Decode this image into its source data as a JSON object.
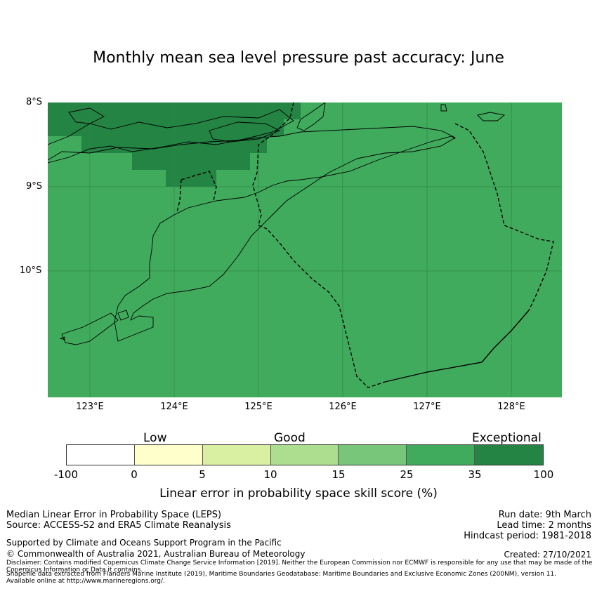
{
  "title": "Monthly mean sea level pressure past accuracy: June",
  "map": {
    "lat_labels": [
      "8°S",
      "9°S",
      "10°S"
    ],
    "lon_labels": [
      "123°E",
      "124°E",
      "125°E",
      "126°E",
      "127°E",
      "128°E"
    ],
    "base_color": "#41ab5d",
    "exceptional_color": "#238443"
  },
  "colorbar": {
    "categories": [
      "Low",
      "Good",
      "Exceptional"
    ],
    "ticks": [
      "-100",
      "0",
      "5",
      "10",
      "15",
      "25",
      "35",
      "100"
    ],
    "colors": [
      "#ffffff",
      "#ffffcc",
      "#d9f0a3",
      "#addd8e",
      "#78c679",
      "#41ab5d",
      "#238443"
    ],
    "label": "Linear error in probability space skill score (%)"
  },
  "footer": {
    "method": "Median Linear Error in Probability Space (LEPS)",
    "source": "Source: ACCESS-S2 and ERA5 Climate Reanalysis",
    "run_date": "Run date: 9th March",
    "lead_time": "Lead time: 2 months",
    "hindcast": "Hindcast period: 1981-2018",
    "support": "Supported by Climate and Oceans Support Program in the Pacific",
    "copyright": "© Commonwealth of Australia 2021, Australian Bureau of Meteorology",
    "created": "Created: 27/10/2021",
    "disclaimer": "Disclaimer: Contains modified Copernicus Climate Change Service Information [2019]. Neither the European Commission nor ECMWF is responsible for any use that may be made of the Copernicus Information or Data it contains.",
    "shapefile": "Shapefile data extracted from Flanders Marine Institute (2019), Maritime Boundaries Geodatabase: Maritime Boundaries and Exclusive Economic Zones (200NM), version 11. Available online at http://www.marineregions.org/."
  }
}
